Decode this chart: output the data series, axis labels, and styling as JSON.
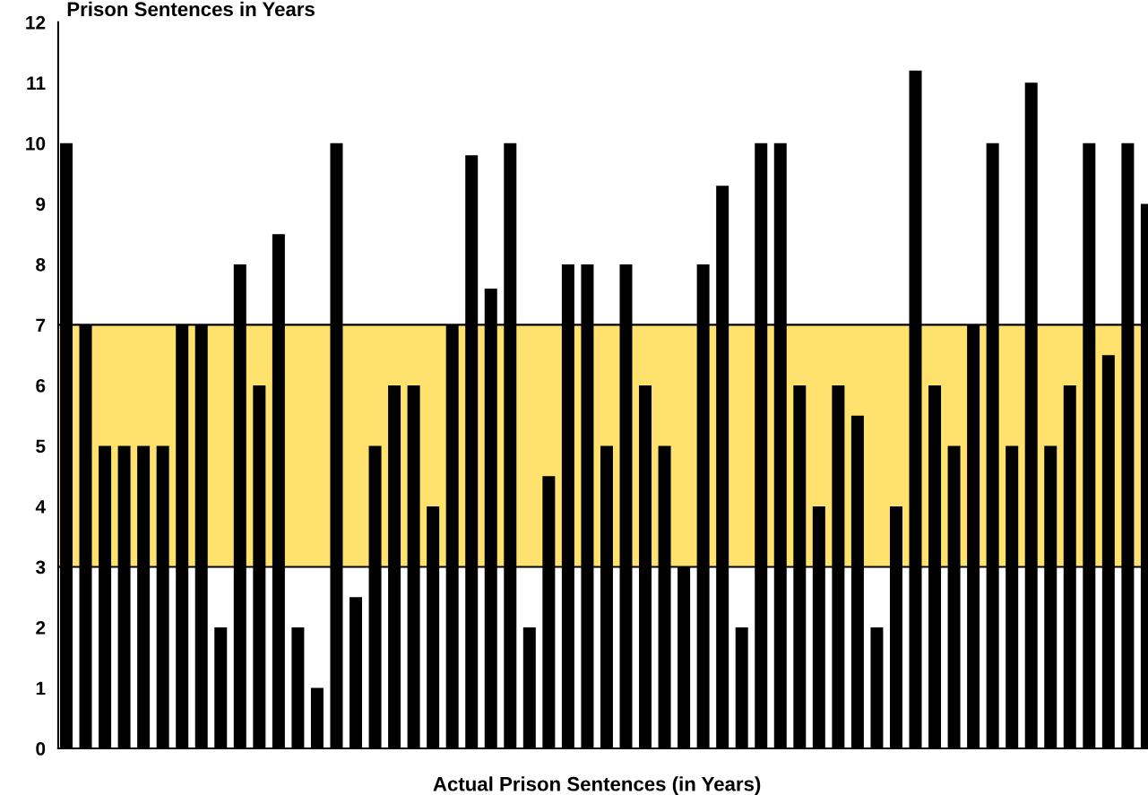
{
  "chart_data": {
    "type": "bar",
    "ylabel": "Prison Sentences in Years",
    "xlabel": "Actual Prison Sentences (in Years)",
    "categories": [
      null,
      null,
      null,
      null,
      null,
      null,
      null,
      null,
      null,
      null,
      null,
      null,
      null,
      null,
      null,
      null,
      null,
      null,
      null,
      null,
      null,
      null,
      null,
      null,
      null,
      null,
      null,
      null,
      null,
      null,
      null,
      null,
      null,
      null,
      null,
      null,
      null,
      null,
      null,
      null,
      null,
      null,
      null,
      null,
      null,
      null,
      null,
      null,
      null,
      null,
      null,
      null,
      null,
      null,
      null,
      null,
      null
    ],
    "values": [
      10,
      7,
      5,
      5,
      5,
      5,
      7,
      7,
      2,
      8,
      6,
      8.5,
      2,
      1,
      10,
      2.5,
      5,
      6,
      6,
      4,
      7,
      9.8,
      7.6,
      10,
      2,
      4.5,
      8,
      8,
      5,
      8,
      6,
      5,
      3,
      8,
      9.3,
      2,
      10,
      10,
      6,
      4,
      6,
      5.5,
      2,
      4,
      11.2,
      6,
      5,
      7,
      10,
      5,
      11,
      5,
      6,
      10,
      6.5,
      10,
      9
    ],
    "color": "#000000",
    "ylim": [
      0,
      12
    ],
    "yticks": [
      0,
      1,
      2,
      3,
      4,
      5,
      6,
      7,
      8,
      9,
      10,
      11,
      12
    ],
    "bands": [
      {
        "axis": "y",
        "from": 3,
        "to": 7,
        "color": "#ffe26e"
      }
    ],
    "grid": false
  }
}
